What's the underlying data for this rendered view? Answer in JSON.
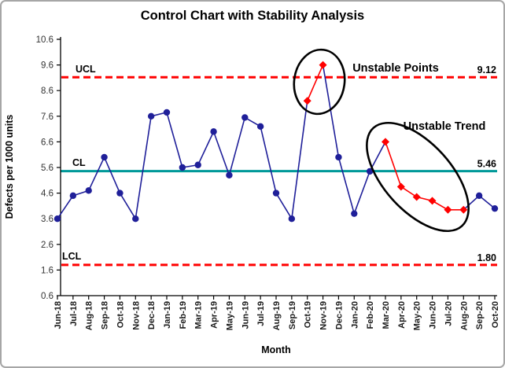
{
  "window": {
    "background": "#FFFFFF",
    "border_color": "#A6A6A6"
  },
  "chart_data": {
    "type": "line",
    "title": "Control Chart with Stability Analysis",
    "xlabel": "Month",
    "ylabel": "Defects per 1000 units",
    "categories": [
      "Jun-18",
      "Jul-18",
      "Aug-18",
      "Sep-18",
      "Oct-18",
      "Nov-18",
      "Dec-18",
      "Jan-19",
      "Feb-19",
      "Mar-19",
      "Apr-19",
      "May-19",
      "Jun-19",
      "Jul-19",
      "Aug-19",
      "Sep-19",
      "Oct-19",
      "Nov-19",
      "Dec-19",
      "Jan-20",
      "Feb-20",
      "Mar-20",
      "Apr-20",
      "May-20",
      "Jun-20",
      "Jul-20",
      "Aug-20",
      "Sep-20",
      "Oct-20"
    ],
    "series": [
      {
        "name": "Defects per 1000 units",
        "values": [
          3.6,
          4.5,
          4.7,
          6.0,
          4.6,
          3.6,
          7.6,
          7.75,
          5.6,
          5.7,
          7.0,
          5.3,
          7.55,
          7.2,
          4.6,
          3.6,
          8.2,
          9.6,
          6.0,
          3.8,
          5.45,
          6.6,
          4.85,
          4.45,
          4.3,
          3.95,
          3.95,
          4.5,
          4.0
        ]
      }
    ],
    "unstable_point_indices": [
      16,
      17
    ],
    "unstable_trend_indices": [
      21,
      22,
      23,
      24,
      25,
      26
    ],
    "control_limits": {
      "ucl": {
        "label": "UCL",
        "value": 9.12,
        "display": "9.12"
      },
      "cl": {
        "label": "CL",
        "value": 5.46,
        "display": "5.46"
      },
      "lcl": {
        "label": "LCL",
        "value": 1.8,
        "display": "1.80"
      }
    },
    "annotations": {
      "unstable_points": "Unstable Points",
      "unstable_trend": "Unstable Trend"
    },
    "ylim": [
      0.6,
      10.6
    ],
    "yticks": [
      "0.6",
      "1.6",
      "2.6",
      "3.6",
      "4.6",
      "5.6",
      "6.6",
      "7.6",
      "8.6",
      "9.6",
      "10.6"
    ],
    "grid": false,
    "legend": false,
    "colors": {
      "series_line": "#1F1F99",
      "unstable": "#FF0000",
      "center_line": "#009999",
      "limit_line": "#FF0000",
      "annotation": "#000000",
      "axis": "#000000",
      "ytick_text": "#333333",
      "xtick_text": "#1A1A1A"
    }
  }
}
